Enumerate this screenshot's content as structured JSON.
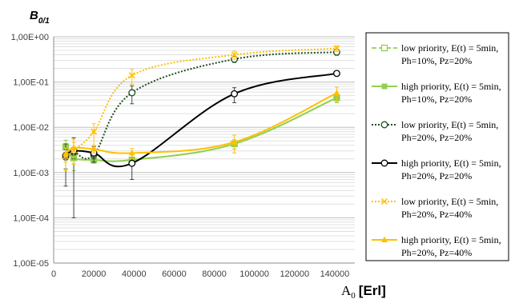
{
  "chart_data": {
    "type": "line",
    "ylabel": {
      "main": "B",
      "sub": "0/1"
    },
    "xlabel": {
      "main": "A",
      "sub": "0",
      "unit": "[Erl]"
    },
    "x_ticks": [
      "0",
      "20000",
      "40000",
      "60000",
      "80000",
      "100000",
      "120000",
      "140000"
    ],
    "x_tick_values": [
      0,
      20000,
      40000,
      60000,
      80000,
      100000,
      120000,
      140000
    ],
    "y_ticks": [
      "1,00E-05",
      "1,00E-04",
      "1,00E-03",
      "1,00E-02",
      "1,00E-01",
      "1,00E+00"
    ],
    "y_tick_values": [
      1e-05,
      0.0001,
      0.001,
      0.01,
      0.1,
      1
    ],
    "xlim": [
      0,
      150000
    ],
    "ylim": [
      1e-05,
      1
    ],
    "y_scale": "log",
    "grid": "horizontal major and minor",
    "legend_position": "right",
    "series": [
      {
        "name": "low priority, E(t) = 5min, Ph=10%, Pz=20%",
        "legend_lines": [
          "low priority, E(t) = 5min,",
          "Ph=10%, Pz=20%"
        ],
        "color": "#92d050",
        "dash": "6,3",
        "width": 1.8,
        "marker": "square-open",
        "x": [
          6000,
          10000,
          20000,
          39000,
          90000,
          141000
        ],
        "y": [
          0.0037,
          0.0021,
          0.0019,
          0.0019,
          0.0043,
          0.045
        ],
        "err": [
          0.0015,
          0.001,
          0.0003,
          0.0003,
          0.001,
          0.01
        ]
      },
      {
        "name": "high priority, E(t) = 5min, Ph=10%, Pz=20%",
        "legend_lines": [
          "high priority, E(t) = 5min,",
          "Ph=10%, Pz=20%"
        ],
        "color": "#92d050",
        "dash": "",
        "width": 2,
        "marker": "square",
        "x": [
          6000,
          10000,
          20000,
          39000,
          90000,
          141000
        ],
        "y": [
          0.0037,
          0.0021,
          0.0019,
          0.0019,
          0.0043,
          0.045
        ],
        "err": [
          0.0015,
          0.001,
          0.0003,
          0.0003,
          0.001,
          0.01
        ]
      },
      {
        "name": "low priority, E(t) = 5min, Ph=20%, Pz=20%",
        "legend_lines": [
          "low priority, E(t) = 5min,",
          "Ph=20%, Pz=20%"
        ],
        "color": "#1e4d1e",
        "dash": "2,2",
        "width": 2,
        "marker": "circle-open",
        "x": [
          6000,
          10000,
          20000,
          39000,
          90000,
          141000
        ],
        "y": [
          0.0022,
          0.0028,
          0.0025,
          0.058,
          0.32,
          0.46
        ],
        "err": [
          0.001,
          0.0008,
          0.0005,
          0.025,
          0.05,
          0.07
        ]
      },
      {
        "name": "high priority, E(t) = 5min, Ph=20%, Pz=20%",
        "legend_lines": [
          "high priority, E(t) = 5min,",
          "Ph=20%, Pz=20%"
        ],
        "color": "#000000",
        "dash": "",
        "width": 2,
        "marker": "circle-open",
        "x": [
          6000,
          10000,
          20000,
          39000,
          90000,
          141000
        ],
        "y": [
          0.0024,
          0.003,
          0.0027,
          0.0016,
          0.055,
          0.155
        ],
        "err": [
          0.0019,
          0.0029,
          0.001,
          0.0009,
          0.02,
          0.01
        ]
      },
      {
        "name": "low priority, E(t) = 5min, Ph=20%, Pz=40%",
        "legend_lines": [
          "low priority, E(t) = 5min,",
          "Ph=20%, Pz=40%"
        ],
        "color": "#ffc000",
        "dash": "2,2",
        "width": 2,
        "marker": "x",
        "x": [
          6000,
          10000,
          20000,
          39000,
          90000,
          141000
        ],
        "y": [
          0.0023,
          0.0031,
          0.008,
          0.14,
          0.4,
          0.55
        ],
        "err": [
          0.0012,
          0.0015,
          0.004,
          0.05,
          0.08,
          0.08
        ]
      },
      {
        "name": "high priority, E(t) = 5min, Ph=20%, Pz=40%",
        "legend_lines": [
          "high priority, E(t) = 5min,",
          "Ph=20%, Pz=40%"
        ],
        "color": "#ffc000",
        "dash": "",
        "width": 2,
        "marker": "triangle",
        "x": [
          6000,
          10000,
          20000,
          39000,
          90000,
          141000
        ],
        "y": [
          0.0026,
          0.0035,
          0.0033,
          0.0027,
          0.0047,
          0.057
        ],
        "err": [
          0.0009,
          0.002,
          0.0006,
          0.0007,
          0.002,
          0.02
        ]
      }
    ]
  }
}
